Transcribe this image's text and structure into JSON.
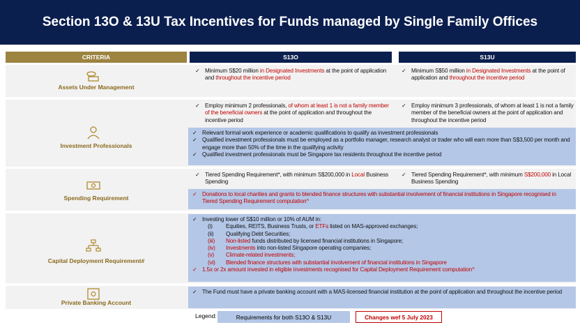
{
  "title": "Section 13O & 13U Tax Incentives for Funds managed by Single Family Offices",
  "header": {
    "criteria": "CRITERIA",
    "s13o": "S13O",
    "s13u": "S13U"
  },
  "rows": [
    {
      "criteria": "Assets Under Management",
      "s13o": [
        {
          "marker": "✓",
          "runs": [
            {
              "text": "Minimum S$20 million "
            },
            {
              "text": "in Designated Investments",
              "color": "#c00000"
            },
            {
              "text": " at the point of application and "
            },
            {
              "text": "throughout the incentive period",
              "color": "#c00000"
            }
          ]
        }
      ],
      "s13u": [
        {
          "marker": "✓",
          "runs": [
            {
              "text": "Minimum S$50 million "
            },
            {
              "text": "in Designated Investments",
              "color": "#c00000"
            },
            {
              "text": " at the point of application and "
            },
            {
              "text": "throughout the incentive period",
              "color": "#c00000"
            }
          ]
        }
      ]
    },
    {
      "criteria": "Investment Professionals",
      "s13o": [
        {
          "marker": "✓",
          "runs": [
            {
              "text": "Employ minimum 2 professionals, "
            },
            {
              "text": "of whom at least 1 is not a family member of the beneficial owners",
              "color": "#c00000"
            },
            {
              "text": " at the point of application and throughout the incentive period"
            }
          ]
        }
      ],
      "s13u": [
        {
          "marker": "✓",
          "runs": [
            {
              "text": "Employ minimum 3 professionals, of whom at least 1 is not a family member of the beneficial owners at the point of application and throughout the incentive period"
            }
          ]
        }
      ],
      "shared": [
        {
          "marker": "✓",
          "runs": [
            {
              "text": "Relevant formal work experience or academic qualifications to qualify as investment professionals"
            }
          ]
        },
        {
          "marker": "✓",
          "runs": [
            {
              "text": "Qualified investment professionals must be employed as a portfolio manager, research analyst or trader who will earn more than S$3,500 per month and engage more than 50% of the time in the qualifying activity"
            }
          ]
        },
        {
          "marker": "✓",
          "runs": [
            {
              "text": "Qualified investment professionals must be Singapore tax residents throughout the incentive period"
            }
          ]
        }
      ]
    },
    {
      "criteria": "Spending Requirement",
      "s13o": [
        {
          "marker": "✓",
          "runs": [
            {
              "text": "Tiered Spending Requirement*, with minimum S$200,000 in "
            },
            {
              "text": "Local",
              "color": "#c00000"
            },
            {
              "text": " Business Spending"
            }
          ]
        }
      ],
      "s13u": [
        {
          "marker": "✓",
          "runs": [
            {
              "text": "Tiered Spending Requirement*, with minimum "
            },
            {
              "text": "S$200,000",
              "color": "#c00000"
            },
            {
              "text": " in Local Business Spending"
            }
          ]
        }
      ],
      "shared": [
        {
          "marker": "✓",
          "marker_color": "#c00000",
          "runs": [
            {
              "text": "Donations to local charities and grants to blended finance structures with substantial involvement of financial institutions in Singapore recognised in Tiered Spending Requirement computation^",
              "color": "#c00000"
            }
          ]
        }
      ]
    },
    {
      "criteria": "Capital Deployment Requirement#",
      "shared": [
        {
          "marker": "✓",
          "runs": [
            {
              "text": "Investing lower of S$10 million or 10% of AUM in:"
            }
          ]
        },
        {
          "marker": "(i)",
          "sub": true,
          "runs": [
            {
              "text": "Equities, REITS, Business Trusts, or "
            },
            {
              "text": "ETFs",
              "color": "#c00000"
            },
            {
              "text": " listed on MAS-approved exchanges;"
            }
          ]
        },
        {
          "marker": "(ii)",
          "sub": true,
          "runs": [
            {
              "text": "Qualifying Debt Securities;"
            }
          ]
        },
        {
          "marker": "(iii)",
          "marker_color": "#c00000",
          "sub": true,
          "runs": [
            {
              "text": "Non-listed",
              "color": "#c00000"
            },
            {
              "text": " funds distributed by licensed financial institutions in Singapore;"
            }
          ]
        },
        {
          "marker": "(iv)",
          "marker_color": "#c00000",
          "sub": true,
          "runs": [
            {
              "text": "Investments",
              "color": "#c00000"
            },
            {
              "text": " into non-listed Singapore operating companies;"
            }
          ]
        },
        {
          "marker": "(v)",
          "marker_color": "#c00000",
          "sub": true,
          "runs": [
            {
              "text": "Climate-related investments;",
              "color": "#c00000"
            }
          ]
        },
        {
          "marker": "(vi)",
          "marker_color": "#c00000",
          "sub": true,
          "runs": [
            {
              "text": "Blended finance structures with substantial involvement of financial institutions in Singapore",
              "color": "#c00000"
            }
          ]
        },
        {
          "marker": "✓",
          "marker_color": "#c00000",
          "runs": [
            {
              "text": "1.5x or 2x amount invested in eligible investments recognised for Capital Deployment Requirement computation^",
              "color": "#c00000"
            }
          ]
        }
      ]
    },
    {
      "criteria": "Private Banking Account",
      "shared": [
        {
          "marker": "✓",
          "runs": [
            {
              "text": "The Fund must have a private banking account with a MAS-licensed financial institution at the point of application and throughout the incentive period"
            }
          ]
        }
      ]
    }
  ],
  "legend": {
    "label": "Legend:",
    "shared": "Requirements for both S13O & S13U",
    "changes": "Changes wef 5 July 2023"
  }
}
